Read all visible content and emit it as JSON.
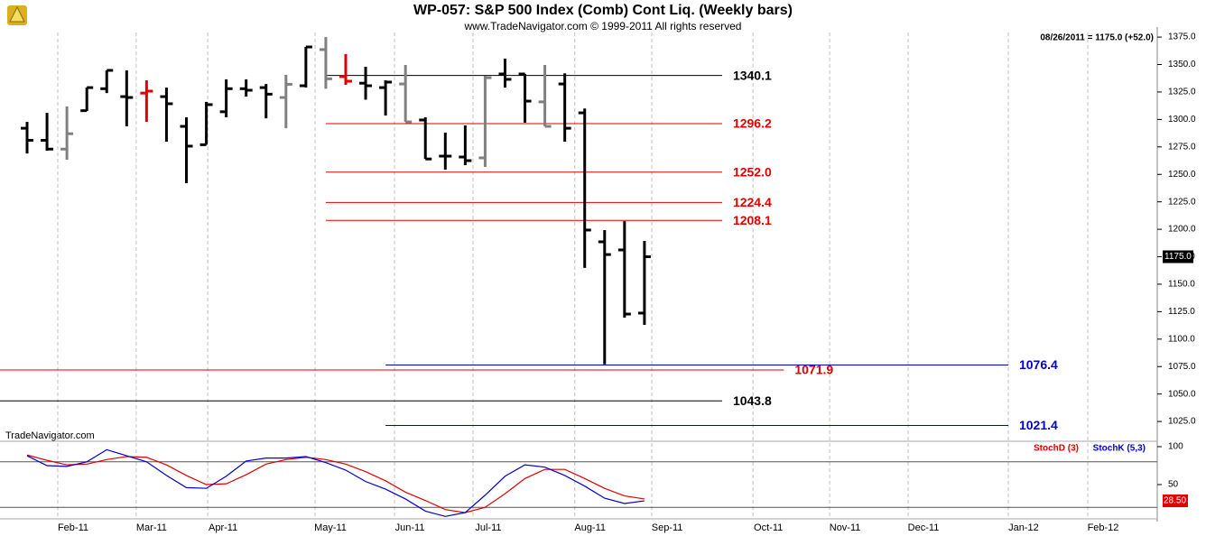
{
  "chart_data": [
    {
      "type": "ohlc",
      "title": "WP-057:  S&P 500 Index (Comb) Cont Liq.  (Weekly bars)",
      "subtitle": "www.TradeNavigator.com © 1999-2011 All rights reserved",
      "header_note": "08/26/2011 = 1175.0 (+52.0)",
      "watermark": "TradeNavigator.com",
      "categories": [
        null,
        null,
        null,
        null,
        null,
        null,
        null,
        null,
        null,
        null,
        null,
        null,
        null,
        null,
        null,
        null,
        null,
        null,
        null,
        null,
        null,
        null,
        null,
        null,
        null,
        null,
        null,
        null,
        null,
        null,
        null,
        null
      ],
      "open": [
        1292,
        1281,
        1273,
        1308,
        1328,
        1320.8,
        1324,
        1320.8,
        1293.7,
        1277,
        1307,
        1328,
        1329,
        1320,
        1330.7,
        1363.6,
        1339,
        1333,
        1329,
        1332.3,
        1299.5,
        1266.6,
        1265.8,
        1265,
        1341.4,
        1341.4,
        1316,
        1332.3,
        1306,
        1188.6,
        1181.2,
        1123.7
      ],
      "high": [
        1297.8,
        1306,
        1311.8,
        1329,
        1344.7,
        1344.7,
        1335.6,
        1329,
        1302,
        1316,
        1336.5,
        1336.5,
        1332.3,
        1340.6,
        1366,
        1375,
        1359.5,
        1348,
        1335.6,
        1349.6,
        1302,
        1288,
        1294.6,
        1339.7,
        1355.4,
        1341.4,
        1349.6,
        1342,
        1310,
        1199.3,
        1207.5,
        1189.4
      ],
      "low": [
        1269,
        1271.6,
        1263.3,
        1307.7,
        1324,
        1293.7,
        1297.8,
        1279.8,
        1242,
        1277,
        1302,
        1320.8,
        1301,
        1292,
        1329,
        1328,
        1331.5,
        1318,
        1303.6,
        1297.8,
        1264,
        1254.3,
        1258.4,
        1256.8,
        1329,
        1297,
        1293.7,
        1279.8,
        1164.8,
        1077,
        1119.6,
        1113
      ],
      "close": [
        1281,
        1273,
        1287,
        1329,
        1344.7,
        1320,
        1325.8,
        1314.3,
        1275.7,
        1313.5,
        1328,
        1326.6,
        1323,
        1332,
        1366,
        1337,
        1334.8,
        1330.7,
        1334,
        1297.8,
        1264,
        1266.6,
        1262.5,
        1338,
        1336.5,
        1316.7,
        1293.7,
        1292,
        1199.3,
        1177,
        1122.8,
        1175
      ],
      "bar_colors": [
        "#000000",
        "#000000",
        "#808080",
        "#000000",
        "#000000",
        "#000000",
        "#e00000",
        "#000000",
        "#000000",
        "#000000",
        "#000000",
        "#000000",
        "#000000",
        "#808080",
        "#000000",
        "#808080",
        "#e00000",
        "#000000",
        "#000000",
        "#808080",
        "#000000",
        "#000000",
        "#000000",
        "#808080",
        "#000000",
        "#000000",
        "#808080",
        "#000000",
        "#000000",
        "#000000",
        "#000000",
        "#000000"
      ],
      "xlim": [
        -1.36,
        56.75
      ],
      "xticks": [
        {
          "value": 1.54,
          "label": "Feb-11"
        },
        {
          "value": 5.48,
          "label": "Mar-11"
        },
        {
          "value": 9.07,
          "label": "Apr-11"
        },
        {
          "value": 14.46,
          "label": "May-11"
        },
        {
          "value": 18.45,
          "label": "Jun-11"
        },
        {
          "value": 22.39,
          "label": "Jul-11"
        },
        {
          "value": 27.5,
          "label": "Aug-11"
        },
        {
          "value": 31.37,
          "label": "Sep-11"
        },
        {
          "value": 36.45,
          "label": "Oct-11"
        },
        {
          "value": 40.3,
          "label": "Nov-11"
        },
        {
          "value": 44.24,
          "label": "Dec-11"
        },
        {
          "value": 49.27,
          "label": "Jan-12"
        },
        {
          "value": 53.26,
          "label": "Feb-12"
        }
      ],
      "ylim": [
        1007,
        1380
      ],
      "yticks": [
        {
          "value": 1375,
          "label": "1375.0"
        },
        {
          "value": 1350,
          "label": "1350.0"
        },
        {
          "value": 1325,
          "label": "1325.0"
        },
        {
          "value": 1300,
          "label": "1300.0"
        },
        {
          "value": 1275,
          "label": "1275.0"
        },
        {
          "value": 1250,
          "label": "1250.0"
        },
        {
          "value": 1225,
          "label": "1225.0"
        },
        {
          "value": 1200,
          "label": "1200.0"
        },
        {
          "value": 1175,
          "label": "1175.0"
        },
        {
          "value": 1150,
          "label": "1150.0"
        },
        {
          "value": 1125,
          "label": "1125.0"
        },
        {
          "value": 1100,
          "label": "1100.0"
        },
        {
          "value": 1075,
          "label": "1075.0"
        },
        {
          "value": 1050,
          "label": "1050.0"
        },
        {
          "value": 1025,
          "label": "1025.0"
        }
      ],
      "last_price": {
        "value": 1175,
        "label": "1175.0"
      },
      "levels": [
        {
          "value": 1340.1,
          "label": "1340.1",
          "color": "#000000",
          "x_range": [
            15,
            34.9
          ]
        },
        {
          "value": 1296.2,
          "label": "1296.2",
          "color": "#e00000",
          "x_range": [
            15,
            34.9
          ]
        },
        {
          "value": 1252,
          "label": "1252.0",
          "color": "#e00000",
          "x_range": [
            15,
            34.9
          ]
        },
        {
          "value": 1224.4,
          "label": "1224.4",
          "color": "#e00000",
          "x_range": [
            15,
            34.9
          ]
        },
        {
          "value": 1208.1,
          "label": "1208.1",
          "color": "#e00000",
          "x_range": [
            15,
            34.9
          ]
        },
        {
          "value": 1071.9,
          "label": "1071.9",
          "color": "#e00000",
          "x_range": [
            -1.36,
            38
          ]
        },
        {
          "value": 1076.4,
          "label": "1076.4",
          "color": "#0000cc",
          "x_range": [
            18,
            49.27
          ]
        },
        {
          "value": 1043.8,
          "label": "1043.8",
          "color": "#000000",
          "x_range": [
            -1.36,
            34.9
          ]
        },
        {
          "value": 1021.4,
          "label": "1021.4",
          "color": "#0000cc",
          "x_range": [
            18,
            49.27
          ]
        }
      ]
    },
    {
      "type": "line",
      "ylim": [
        0,
        100
      ],
      "yticks": [
        100,
        50
      ],
      "ref_lines": [
        80,
        20
      ],
      "current": {
        "value": 28.5,
        "label": "28.50"
      },
      "series": [
        {
          "name": "StochD (3)",
          "color": "#e00000",
          "values": [
            89,
            82,
            76,
            77,
            83,
            87,
            86,
            76,
            62,
            50,
            51,
            63,
            77,
            83,
            86,
            83,
            77,
            67,
            55,
            40,
            29,
            17,
            13,
            20,
            38,
            58,
            70,
            70,
            58,
            45,
            35,
            31
          ]
        },
        {
          "name": "StochK (5,3)",
          "color": "#0000cc",
          "values": [
            88,
            75,
            74,
            80,
            96,
            88,
            80,
            62,
            46,
            45,
            61,
            81,
            85,
            85,
            87,
            79,
            69,
            54,
            44,
            31,
            15,
            8,
            13,
            36,
            61,
            76,
            73,
            62,
            48,
            32,
            25,
            28.5
          ]
        }
      ]
    }
  ]
}
